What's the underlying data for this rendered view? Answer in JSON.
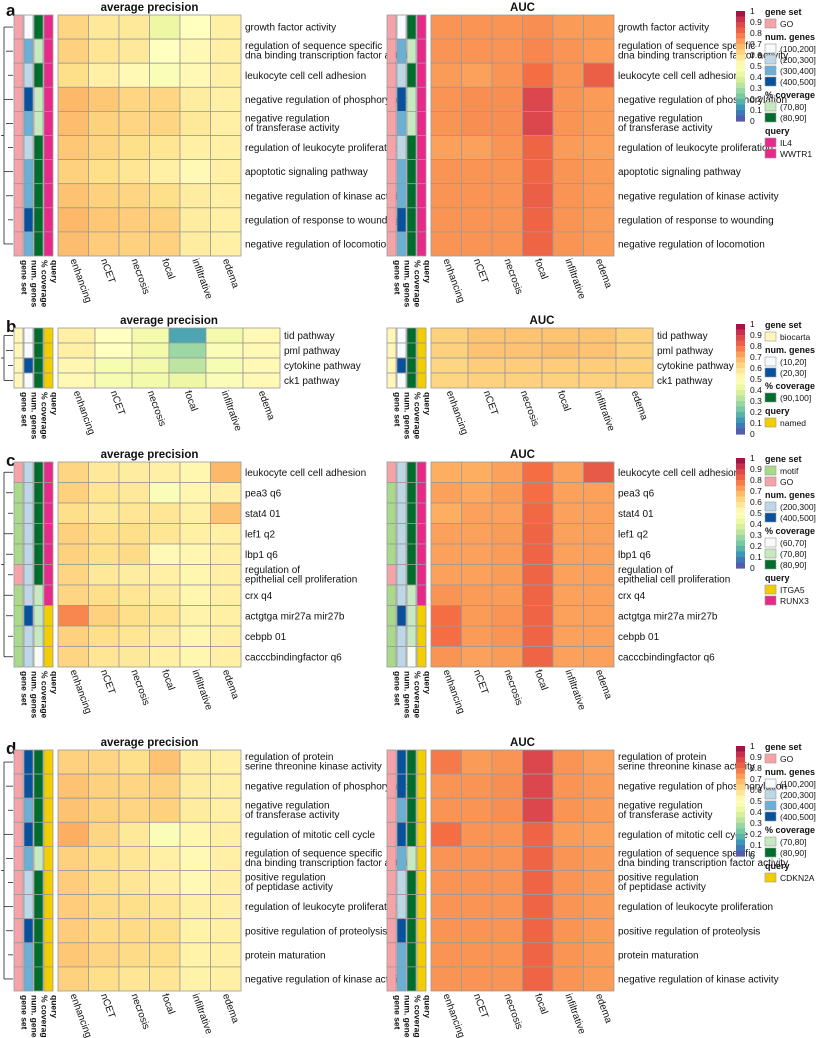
{
  "colors": {
    "heat_scale": [
      "#5E4FA2",
      "#3288BD",
      "#66C2A5",
      "#ABDDA4",
      "#E6F598",
      "#FFFFBF",
      "#FEE08B",
      "#FDAE61",
      "#F46D43",
      "#D53E4F",
      "#9E0142"
    ],
    "gene_set": {
      "GO": "#F4A3A8",
      "biocarta": "#FFF6B8",
      "motif": "#A9D98B"
    },
    "num_genes": {
      "(10,20]": "#F7FBFF",
      "(20,30]": "#08519C",
      "(100,200]": "#F7FBFF",
      "(200,300]": "#BDD7E7",
      "(300,400]": "#6BAED6",
      "(400,500]": "#08519C"
    },
    "coverage": {
      "(60,70]": "#F7FCF5",
      "(70,80]": "#C7E9C0",
      "(80,90]": "#006D2C",
      "(90,100]": "#006D2C"
    },
    "query": {
      "IL4": "#E7298A",
      "WWTR1": "#E7298A",
      "named": "#F2CD00",
      "ITGA5": "#F2CD00",
      "RUNX3": "#E7298A",
      "CDKN2A": "#F2CD00"
    }
  },
  "chart_data": [
    {
      "type": "heatmap",
      "panel": "a",
      "titles": [
        "average precision",
        "AUC"
      ],
      "columns": [
        "enhancing",
        "nCET",
        "necrosis",
        "focal",
        "infiltrative",
        "edema"
      ],
      "annotation_columns": [
        "gene set",
        "num. genes",
        "% coverage",
        "query"
      ],
      "rows": [
        "growth factor activity",
        "regulation of sequence specific\ndna binding transcription factor activity",
        "leukocyte cell cell adhesion",
        "negative regulation of phosphorylation",
        "negative regulation\nof transferase activity",
        "regulation of leukocyte proliferation",
        "apoptotic signaling pathway",
        "negative regulation of kinase activity",
        "regulation of response to wounding",
        "negative regulation of locomotion"
      ],
      "annotations": [
        [
          "GO",
          "(100,200]",
          "(80,90]",
          "IL4"
        ],
        [
          "GO",
          "(300,400]",
          "(70,80]",
          "IL4"
        ],
        [
          "GO",
          "(200,300]",
          "(80,90]",
          "IL4"
        ],
        [
          "GO",
          "(400,500]",
          "(70,80]",
          "IL4"
        ],
        [
          "GO",
          "(300,400]",
          "(70,80]",
          "IL4"
        ],
        [
          "GO",
          "(200,300]",
          "(80,90]",
          "IL4"
        ],
        [
          "GO",
          "(300,400]",
          "(80,90]",
          "IL4"
        ],
        [
          "GO",
          "(300,400]",
          "(80,90]",
          "IL4"
        ],
        [
          "GO",
          "(400,500]",
          "(80,90]",
          "IL4"
        ],
        [
          "GO",
          "(300,400]",
          "(80,90]",
          "IL4"
        ]
      ],
      "average_precision": [
        [
          0.62,
          0.57,
          0.57,
          0.43,
          0.5,
          0.55
        ],
        [
          0.63,
          0.58,
          0.57,
          0.5,
          0.52,
          0.55
        ],
        [
          0.6,
          0.55,
          0.52,
          0.48,
          0.52,
          0.55
        ],
        [
          0.68,
          0.65,
          0.62,
          0.62,
          0.56,
          0.55
        ],
        [
          0.67,
          0.63,
          0.62,
          0.62,
          0.57,
          0.55
        ],
        [
          0.65,
          0.62,
          0.6,
          0.58,
          0.55,
          0.55
        ],
        [
          0.63,
          0.6,
          0.58,
          0.55,
          0.52,
          0.55
        ],
        [
          0.66,
          0.63,
          0.62,
          0.6,
          0.56,
          0.55
        ],
        [
          0.68,
          0.65,
          0.64,
          0.63,
          0.56,
          0.55
        ],
        [
          0.67,
          0.64,
          0.63,
          0.63,
          0.56,
          0.55
        ]
      ],
      "auc": [
        [
          0.74,
          0.74,
          0.74,
          0.75,
          0.73,
          0.73
        ],
        [
          0.74,
          0.74,
          0.74,
          0.76,
          0.74,
          0.73
        ],
        [
          0.73,
          0.72,
          0.74,
          0.8,
          0.74,
          0.83
        ],
        [
          0.74,
          0.75,
          0.75,
          0.88,
          0.74,
          0.73
        ],
        [
          0.74,
          0.75,
          0.75,
          0.88,
          0.74,
          0.73
        ],
        [
          0.72,
          0.72,
          0.74,
          0.82,
          0.73,
          0.72
        ],
        [
          0.74,
          0.74,
          0.74,
          0.82,
          0.74,
          0.73
        ],
        [
          0.74,
          0.74,
          0.74,
          0.83,
          0.74,
          0.73
        ],
        [
          0.74,
          0.74,
          0.74,
          0.82,
          0.74,
          0.73
        ],
        [
          0.74,
          0.74,
          0.74,
          0.82,
          0.74,
          0.73
        ]
      ],
      "legend": {
        "scale_ticks": [
          "1",
          "0.9",
          "0.8",
          "0.7",
          "0.6",
          "0.5",
          "0.4",
          "0.3",
          "0.2",
          "0.1",
          "0"
        ],
        "groups": [
          {
            "title": "gene set",
            "items": [
              "GO"
            ]
          },
          {
            "title": "num. genes",
            "items": [
              "(100,200]",
              "(200,300]",
              "(300,400]",
              "(400,500]"
            ]
          },
          {
            "title": "% coverage",
            "items": [
              "(70,80]",
              "(80,90]"
            ]
          },
          {
            "title": "query",
            "items": [
              "IL4",
              "WWTR1"
            ]
          }
        ]
      }
    },
    {
      "type": "heatmap",
      "panel": "b",
      "titles": [
        "average precision",
        "AUC"
      ],
      "columns": [
        "enhancing",
        "nCET",
        "necrosis",
        "focal",
        "infiltrative",
        "edema"
      ],
      "annotation_columns": [
        "gene set",
        "num. genes",
        "% coverage",
        "query"
      ],
      "rows": [
        "tid pathway",
        "pml pathway",
        "cytokine pathway",
        "ck1 pathway"
      ],
      "annotations": [
        [
          "biocarta",
          "(10,20]",
          "(90,100]",
          "named"
        ],
        [
          "biocarta",
          "(10,20]",
          "(90,100]",
          "named"
        ],
        [
          "biocarta",
          "(20,30]",
          "(90,100]",
          "named"
        ],
        [
          "biocarta",
          "(10,20]",
          "(90,100]",
          "named"
        ]
      ],
      "average_precision": [
        [
          0.55,
          0.5,
          0.45,
          0.15,
          0.45,
          0.52
        ],
        [
          0.55,
          0.5,
          0.45,
          0.28,
          0.48,
          0.52
        ],
        [
          0.53,
          0.47,
          0.45,
          0.33,
          0.47,
          0.52
        ],
        [
          0.52,
          0.47,
          0.45,
          0.43,
          0.48,
          0.52
        ]
      ],
      "auc": [
        [
          0.63,
          0.66,
          0.66,
          0.66,
          0.66,
          0.63
        ],
        [
          0.63,
          0.66,
          0.66,
          0.67,
          0.66,
          0.63
        ],
        [
          0.62,
          0.64,
          0.64,
          0.64,
          0.64,
          0.63
        ],
        [
          0.62,
          0.63,
          0.63,
          0.63,
          0.63,
          0.63
        ]
      ],
      "legend": {
        "scale_ticks": [
          "1",
          "0.9",
          "0.8",
          "0.7",
          "0.6",
          "0.5",
          "0.4",
          "0.3",
          "0.2",
          "0.1",
          "0"
        ],
        "groups": [
          {
            "title": "gene set",
            "items": [
              "biocarta"
            ]
          },
          {
            "title": "num. genes",
            "items": [
              "(10,20]",
              "(20,30]"
            ]
          },
          {
            "title": "% coverage",
            "items": [
              "(90,100]"
            ]
          },
          {
            "title": "query",
            "items": [
              "named"
            ]
          }
        ]
      }
    },
    {
      "type": "heatmap",
      "panel": "c",
      "titles": [
        "average precision",
        "AUC"
      ],
      "columns": [
        "enhancing",
        "nCET",
        "necrosis",
        "focal",
        "infiltrative",
        "edema"
      ],
      "annotation_columns": [
        "gene set",
        "num. genes",
        "% coverage",
        "query"
      ],
      "rows": [
        "leukocyte cell cell adhesion",
        "pea3 q6",
        "stat4 01",
        "lef1 q2",
        "lbp1 q6",
        "regulation of\nepithelial cell proliferation",
        "crx q4",
        "actgtga mir27a mir27b",
        "cebpb 01",
        "cacccbindingfactor q6"
      ],
      "annotations": [
        [
          "GO",
          "(200,300]",
          "(80,90]",
          "RUNX3"
        ],
        [
          "motif",
          "(200,300]",
          "(80,90]",
          "RUNX3"
        ],
        [
          "motif",
          "(200,300]",
          "(80,90]",
          "RUNX3"
        ],
        [
          "motif",
          "(200,300]",
          "(80,90]",
          "RUNX3"
        ],
        [
          "motif",
          "(200,300]",
          "(80,90]",
          "RUNX3"
        ],
        [
          "GO",
          "(200,300]",
          "(80,90]",
          "RUNX3"
        ],
        [
          "motif",
          "(200,300]",
          "(70,80]",
          "RUNX3"
        ],
        [
          "motif",
          "(400,500]",
          "(70,80]",
          "ITGA5"
        ],
        [
          "motif",
          "(200,300]",
          "(70,80]",
          "ITGA5"
        ],
        [
          "motif",
          "(200,300]",
          "(60,70]",
          "ITGA5"
        ]
      ],
      "average_precision": [
        [
          0.62,
          0.57,
          0.56,
          0.55,
          0.53,
          0.68
        ],
        [
          0.63,
          0.58,
          0.57,
          0.48,
          0.53,
          0.55
        ],
        [
          0.6,
          0.57,
          0.58,
          0.58,
          0.55,
          0.66
        ],
        [
          0.63,
          0.6,
          0.6,
          0.58,
          0.55,
          0.55
        ],
        [
          0.63,
          0.6,
          0.61,
          0.52,
          0.53,
          0.55
        ],
        [
          0.62,
          0.57,
          0.56,
          0.55,
          0.53,
          0.55
        ],
        [
          0.62,
          0.6,
          0.58,
          0.56,
          0.53,
          0.55
        ],
        [
          0.76,
          0.63,
          0.6,
          0.58,
          0.54,
          0.55
        ],
        [
          0.63,
          0.6,
          0.58,
          0.56,
          0.53,
          0.55
        ],
        [
          0.62,
          0.58,
          0.57,
          0.55,
          0.53,
          0.55
        ]
      ],
      "auc": [
        [
          0.7,
          0.7,
          0.72,
          0.8,
          0.72,
          0.84
        ],
        [
          0.72,
          0.71,
          0.73,
          0.8,
          0.72,
          0.72
        ],
        [
          0.7,
          0.72,
          0.72,
          0.81,
          0.72,
          0.72
        ],
        [
          0.72,
          0.72,
          0.73,
          0.82,
          0.72,
          0.72
        ],
        [
          0.72,
          0.72,
          0.73,
          0.82,
          0.72,
          0.72
        ],
        [
          0.72,
          0.72,
          0.73,
          0.82,
          0.72,
          0.72
        ],
        [
          0.74,
          0.73,
          0.73,
          0.82,
          0.72,
          0.72
        ],
        [
          0.8,
          0.73,
          0.74,
          0.82,
          0.72,
          0.72
        ],
        [
          0.8,
          0.73,
          0.74,
          0.82,
          0.72,
          0.72
        ],
        [
          0.74,
          0.72,
          0.73,
          0.82,
          0.72,
          0.72
        ]
      ],
      "legend": {
        "scale_ticks": [
          "1",
          "0.9",
          "0.8",
          "0.7",
          "0.6",
          "0.5",
          "0.4",
          "0.3",
          "0.2",
          "0.1",
          "0"
        ],
        "groups": [
          {
            "title": "gene set",
            "items": [
              "motif",
              "GO"
            ]
          },
          {
            "title": "num. genes",
            "items": [
              "(200,300]",
              "(400,500]"
            ]
          },
          {
            "title": "% coverage",
            "items": [
              "(60,70]",
              "(70,80]",
              "(80,90]"
            ]
          },
          {
            "title": "query",
            "items": [
              "ITGA5",
              "RUNX3"
            ]
          }
        ]
      }
    },
    {
      "type": "heatmap",
      "panel": "d",
      "titles": [
        "average precision",
        "AUC"
      ],
      "columns": [
        "enhancing",
        "nCET",
        "necrosis",
        "focal",
        "infiltrative",
        "edema"
      ],
      "annotation_columns": [
        "gene set",
        "num. genes",
        "% coverage",
        "query"
      ],
      "rows": [
        "regulation of protein\nserine threonine kinase activity",
        "negative regulation of phosphorylation",
        "negative regulation\nof transferase activity",
        "regulation of mitotic cell cycle",
        "regulation of sequence specific\ndna binding transcription factor activity",
        "positive regulation\nof peptidase activity",
        "regulation of leukocyte proliferation",
        "positive regulation of proteolysis",
        "protein maturation",
        "negative regulation of kinase activity"
      ],
      "annotations": [
        [
          "GO",
          "(400,500]",
          "(80,90]",
          "CDKN2A"
        ],
        [
          "GO",
          "(400,500]",
          "(80,90]",
          "CDKN2A"
        ],
        [
          "GO",
          "(300,400]",
          "(80,90]",
          "CDKN2A"
        ],
        [
          "GO",
          "(400,500]",
          "(80,90]",
          "CDKN2A"
        ],
        [
          "GO",
          "(300,400]",
          "(70,80]",
          "CDKN2A"
        ],
        [
          "GO",
          "(200,300]",
          "(80,90]",
          "CDKN2A"
        ],
        [
          "GO",
          "(200,300]",
          "(80,90]",
          "CDKN2A"
        ],
        [
          "GO",
          "(400,500]",
          "(80,90]",
          "CDKN2A"
        ],
        [
          "GO",
          "(300,400]",
          "(80,90]",
          "CDKN2A"
        ],
        [
          "GO",
          "(300,400]",
          "(80,90]",
          "CDKN2A"
        ]
      ],
      "average_precision": [
        [
          0.63,
          0.62,
          0.6,
          0.66,
          0.56,
          0.55
        ],
        [
          0.66,
          0.63,
          0.62,
          0.63,
          0.56,
          0.55
        ],
        [
          0.66,
          0.63,
          0.62,
          0.63,
          0.56,
          0.55
        ],
        [
          0.7,
          0.62,
          0.57,
          0.48,
          0.53,
          0.55
        ],
        [
          0.63,
          0.6,
          0.58,
          0.55,
          0.52,
          0.55
        ],
        [
          0.64,
          0.6,
          0.58,
          0.55,
          0.52,
          0.55
        ],
        [
          0.64,
          0.61,
          0.6,
          0.58,
          0.55,
          0.55
        ],
        [
          0.64,
          0.61,
          0.61,
          0.6,
          0.54,
          0.55
        ],
        [
          0.65,
          0.62,
          0.61,
          0.6,
          0.54,
          0.55
        ],
        [
          0.63,
          0.6,
          0.58,
          0.58,
          0.54,
          0.55
        ]
      ],
      "auc": [
        [
          0.78,
          0.73,
          0.74,
          0.88,
          0.74,
          0.72
        ],
        [
          0.74,
          0.74,
          0.75,
          0.88,
          0.74,
          0.73
        ],
        [
          0.74,
          0.74,
          0.75,
          0.88,
          0.74,
          0.73
        ],
        [
          0.8,
          0.74,
          0.74,
          0.82,
          0.73,
          0.72
        ],
        [
          0.74,
          0.74,
          0.74,
          0.82,
          0.74,
          0.73
        ],
        [
          0.74,
          0.74,
          0.74,
          0.82,
          0.74,
          0.73
        ],
        [
          0.74,
          0.74,
          0.74,
          0.82,
          0.74,
          0.73
        ],
        [
          0.74,
          0.74,
          0.74,
          0.82,
          0.74,
          0.73
        ],
        [
          0.74,
          0.74,
          0.74,
          0.82,
          0.74,
          0.73
        ],
        [
          0.74,
          0.74,
          0.74,
          0.82,
          0.74,
          0.73
        ]
      ],
      "legend": {
        "scale_ticks": [
          "1",
          "0.9",
          "0.8",
          "0.7",
          "0.6",
          "0.5",
          "0.4",
          "0.3",
          "0.2",
          "0.1",
          "0"
        ],
        "groups": [
          {
            "title": "gene set",
            "items": [
              "GO"
            ]
          },
          {
            "title": "num. genes",
            "items": [
              "(100,200]",
              "(200,300]",
              "(300,400]",
              "(400,500]"
            ]
          },
          {
            "title": "% coverage",
            "items": [
              "(70,80]",
              "(80,90]"
            ]
          },
          {
            "title": "query",
            "items": [
              "CDKN2A"
            ]
          }
        ]
      }
    }
  ]
}
